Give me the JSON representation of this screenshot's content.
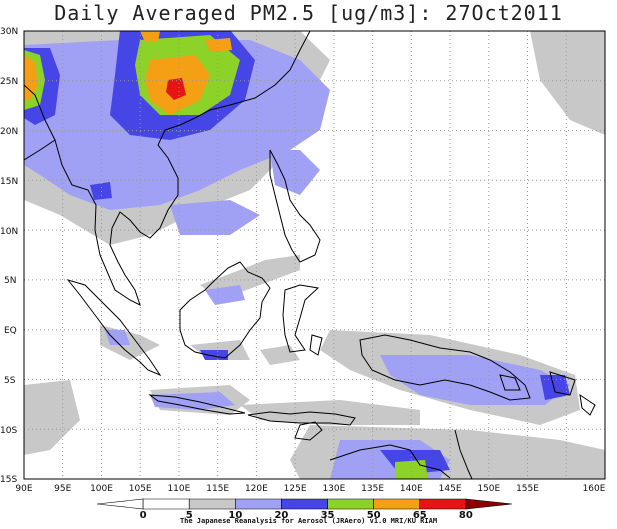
{
  "title": "Daily Averaged PM2.5 [ug/m3]: 27Oct2011",
  "lat_labels": [
    "30N",
    "25N",
    "20N",
    "15N",
    "10N",
    "5N",
    "EQ",
    "5S",
    "10S",
    "15S"
  ],
  "lon_labels": [
    "90E",
    "95E",
    "100E",
    "105E",
    "110E",
    "115E",
    "120E",
    "125E",
    "130E",
    "135E",
    "140E",
    "145E",
    "150E",
    "155E",
    "160E"
  ],
  "colorbar": {
    "ticks": [
      "0",
      "5",
      "10",
      "20",
      "35",
      "50",
      "65",
      "80"
    ],
    "colors": [
      "#ffffff",
      "#ffffff",
      "#c8c8c8",
      "#a0a0f5",
      "#4646e6",
      "#8cd228",
      "#f5a014",
      "#e61414",
      "#8c0000"
    ]
  },
  "credit": "The Japanese Reanalysis for Aerosol (JRAero) v1.0 MRI/KU RIAM"
}
